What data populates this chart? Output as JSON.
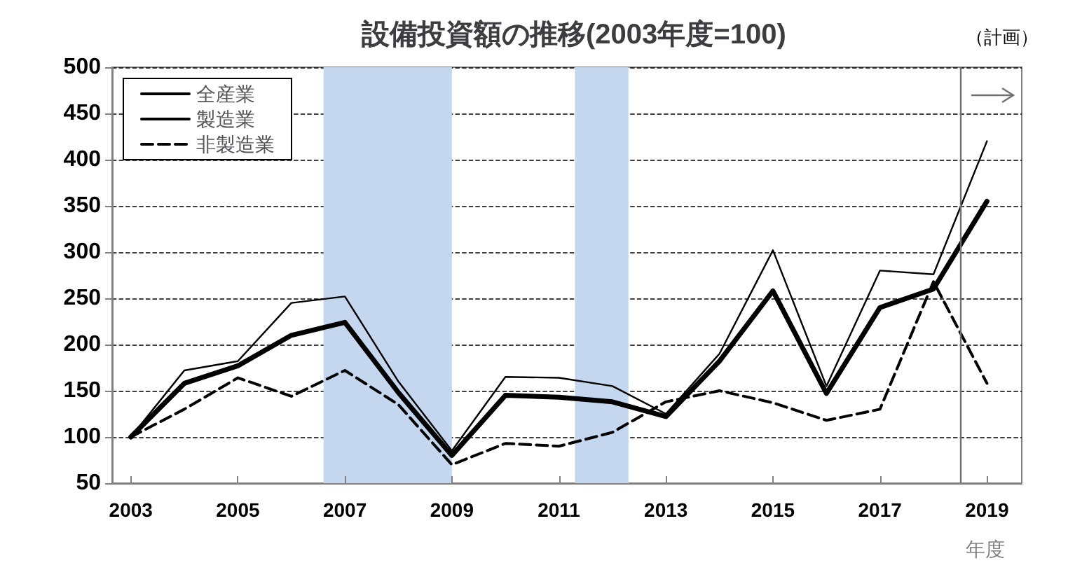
{
  "chart_data": {
    "type": "line",
    "title": "設備投資額の推移(2003年度=100)",
    "xlabel": "年度",
    "x": [
      2003,
      2004,
      2005,
      2006,
      2007,
      2008,
      2009,
      2010,
      2011,
      2012,
      2013,
      2014,
      2015,
      2016,
      2017,
      2018,
      2019
    ],
    "xlim": [
      2002.65,
      2019.65
    ],
    "xticks": [
      2003,
      2005,
      2007,
      2009,
      2011,
      2013,
      2015,
      2017,
      2019
    ],
    "ylim": [
      50,
      500
    ],
    "yticks": [
      50,
      100,
      150,
      200,
      250,
      300,
      350,
      400,
      450,
      500
    ],
    "series": [
      {
        "name": "全産業",
        "color": "#000000",
        "line_style": "solid",
        "values": [
          100,
          158,
          177,
          210,
          224,
          148,
          80,
          145,
          143,
          138,
          122,
          182,
          258,
          147,
          240,
          260,
          355
        ]
      },
      {
        "name": "製造業",
        "color": "#000000",
        "line_style": "solid",
        "values": [
          100,
          172,
          182,
          245,
          252,
          160,
          85,
          165,
          164,
          155,
          125,
          190,
          302,
          155,
          280,
          276,
          420
        ]
      },
      {
        "name": "非製造業",
        "color": "#000000",
        "line_style": "dashed",
        "values": [
          100,
          130,
          164,
          144,
          172,
          135,
          70,
          93,
          90,
          105,
          138,
          150,
          137,
          118,
          130,
          268,
          158
        ]
      }
    ],
    "bands": [
      {
        "axis": "x",
        "from": 2006.6,
        "to": 2009.0,
        "color": "#c5d7ee"
      },
      {
        "axis": "x",
        "from": 2011.3,
        "to": 2012.3,
        "color": "#c5d7ee"
      }
    ],
    "ref_lines": [
      {
        "axis": "x",
        "value": 2018.5,
        "label": "（計画）",
        "color": "#707070",
        "line_style": "solid"
      }
    ],
    "grid": "y",
    "legend": "top left",
    "marker": "none"
  }
}
